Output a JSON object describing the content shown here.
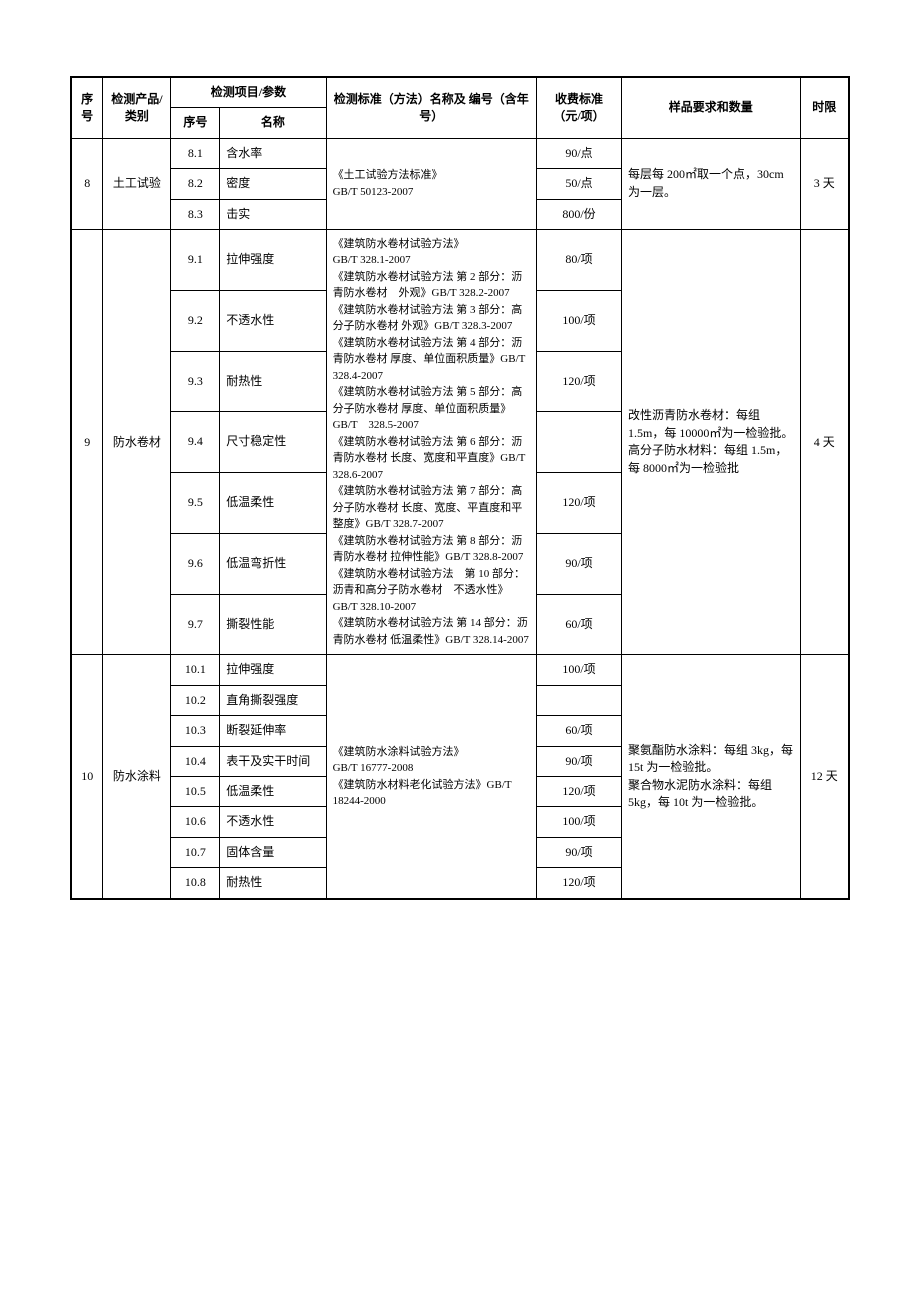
{
  "headers": {
    "seq": "序号",
    "category": "检测产品/类别",
    "param_group": "检测项目/参数",
    "sub_seq": "序号",
    "name": "名称",
    "standard": "检测标准（方法）名称及\n编号（含年号）",
    "fee": "收费标准\n（元/项）",
    "requirement": "样品要求和数量",
    "time": "时限"
  },
  "groups": [
    {
      "seq": "8",
      "category": "土工试验",
      "standard": "《土工试验方法标准》\nGB/T 50123-2007",
      "requirement": "每层每 200㎡取一个点，30cm为一层。",
      "time": "3 天",
      "items": [
        {
          "sub": "8.1",
          "name": "含水率",
          "fee": "90/点"
        },
        {
          "sub": "8.2",
          "name": "密度",
          "fee": "50/点"
        },
        {
          "sub": "8.3",
          "name": "击实",
          "fee": "800/份"
        }
      ]
    },
    {
      "seq": "9",
      "category": "防水卷材",
      "standard": "《建筑防水卷材试验方法》\nGB/T 328.1-2007\n《建筑防水卷材试验方法 第 2 部分：沥青防水卷材　外观》GB/T 328.2-2007\n《建筑防水卷材试验方法 第 3 部分：高分子防水卷材 外观》GB/T 328.3-2007\n《建筑防水卷材试验方法 第 4 部分：沥青防水卷材 厚度、单位面积质量》GB/T 328.4-2007\n《建筑防水卷材试验方法 第 5 部分：高分子防水卷材 厚度、单位面积质量》GB/T　328.5-2007\n《建筑防水卷材试验方法 第 6 部分：沥青防水卷材 长度、宽度和平直度》GB/T 328.6-2007\n《建筑防水卷材试验方法 第 7 部分：高分子防水卷材 长度、宽度、平直度和平整度》GB/T 328.7-2007\n《建筑防水卷材试验方法 第 8 部分：沥青防水卷材 拉伸性能》GB/T 328.8-2007\n《建筑防水卷材试验方法　第 10 部分：沥青和高分子防水卷材　不透水性》GB/T 328.10-2007\n《建筑防水卷材试验方法 第 14 部分：沥青防水卷材 低温柔性》GB/T 328.14-2007",
      "requirement": "改性沥青防水卷材：每组 1.5m，每 10000㎡为一检验批。\n高分子防水材料：每组 1.5m，每 8000㎡为一检验批",
      "time": "4 天",
      "items": [
        {
          "sub": "9.1",
          "name": "拉伸强度",
          "fee": "80/项"
        },
        {
          "sub": "9.2",
          "name": "不透水性",
          "fee": "100/项"
        },
        {
          "sub": "9.3",
          "name": "耐热性",
          "fee": "120/项"
        },
        {
          "sub": "9.4",
          "name": "尺寸稳定性",
          "fee": ""
        },
        {
          "sub": "9.5",
          "name": "低温柔性",
          "fee": "120/项"
        },
        {
          "sub": "9.6",
          "name": "低温弯折性",
          "fee": "90/项"
        },
        {
          "sub": "9.7",
          "name": "撕裂性能",
          "fee": "60/项"
        }
      ]
    },
    {
      "seq": "10",
      "category": "防水涂料",
      "standard": "《建筑防水涂料试验方法》\nGB/T 16777-2008\n《建筑防水材料老化试验方法》GB/T 18244-2000",
      "requirement": "聚氨酯防水涂料：每组 3kg，每 15t 为一检验批。\n聚合物水泥防水涂料：每组 5kg，每 10t 为一检验批。",
      "time": "12 天",
      "items": [
        {
          "sub": "10.1",
          "name": "拉伸强度",
          "fee": "100/项"
        },
        {
          "sub": "10.2",
          "name": "直角撕裂强度",
          "fee": ""
        },
        {
          "sub": "10.3",
          "name": "断裂延伸率",
          "fee": "60/项"
        },
        {
          "sub": "10.4",
          "name": "表干及实干时间",
          "fee": "90/项"
        },
        {
          "sub": "10.5",
          "name": "低温柔性",
          "fee": "120/项"
        },
        {
          "sub": "10.6",
          "name": "不透水性",
          "fee": "100/项"
        },
        {
          "sub": "10.7",
          "name": "固体含量",
          "fee": "90/项"
        },
        {
          "sub": "10.8",
          "name": "耐热性",
          "fee": "120/项"
        }
      ]
    }
  ]
}
